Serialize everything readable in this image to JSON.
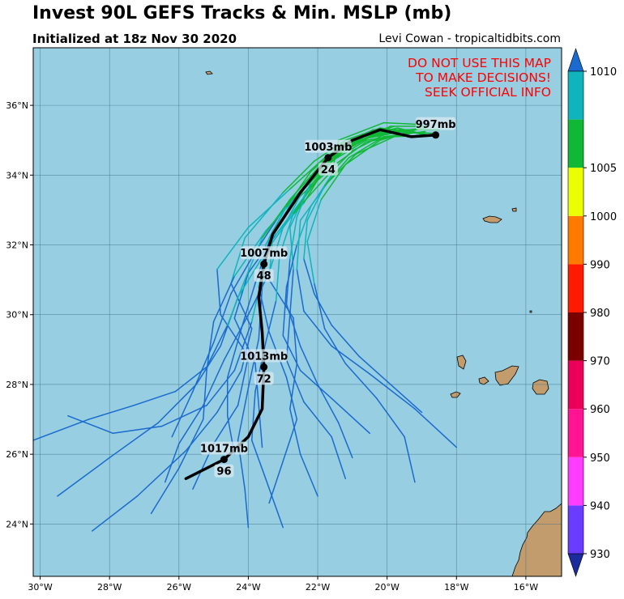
{
  "title": "Invest 90L GEFS Tracks & Min. MSLP (mb)",
  "subtitle": "Initialized at 18z Nov 30 2020",
  "credit": "Levi Cowan - tropicaltidbits.com",
  "warning": {
    "line1": "DO NOT USE THIS MAP",
    "line2": "TO MAKE DECISIONS!",
    "line3": "SEEK OFFICIAL INFO"
  },
  "map": {
    "extent": {
      "lon_min": -30.2,
      "lon_max": -14.97,
      "lat_min": 22.5,
      "lat_max": 37.65
    },
    "ocean_color": "#97cee2",
    "land_color": "#c39c6e",
    "lon_ticks": [
      {
        "value": -30,
        "label": "30°W"
      },
      {
        "value": -28,
        "label": "28°W"
      },
      {
        "value": -26,
        "label": "26°W"
      },
      {
        "value": -24,
        "label": "24°W"
      },
      {
        "value": -22,
        "label": "22°W"
      },
      {
        "value": -20,
        "label": "20°W"
      },
      {
        "value": -18,
        "label": "18°W"
      },
      {
        "value": -16,
        "label": "16°W"
      }
    ],
    "lat_ticks": [
      {
        "value": 24,
        "label": "24°N"
      },
      {
        "value": 26,
        "label": "26°N"
      },
      {
        "value": 28,
        "label": "28°N"
      },
      {
        "value": 30,
        "label": "30°N"
      },
      {
        "value": 32,
        "label": "32°N"
      },
      {
        "value": 34,
        "label": "34°N"
      },
      {
        "value": 36,
        "label": "36°N"
      }
    ]
  },
  "colorbar": {
    "levels": [
      930,
      940,
      950,
      960,
      970,
      980,
      990,
      1000,
      1005,
      1010
    ],
    "colors": [
      "#6a3cff",
      "#ff3cff",
      "#ff1493",
      "#ea0058",
      "#7a0000",
      "#ff1a00",
      "#ff7a00",
      "#ebff00",
      "#10b836",
      "#0fb4bc"
    ],
    "under_color": "#1b2a9c",
    "over_color": "#1a6ad0",
    "labels": [
      "930",
      "940",
      "950",
      "960",
      "970",
      "980",
      "990",
      "1000",
      "1005",
      "1010"
    ]
  },
  "mean_track": {
    "points": [
      {
        "lon": -25.8,
        "lat": 25.3
      },
      {
        "lon": -24.7,
        "lat": 25.85
      },
      {
        "lon": -24.0,
        "lat": 26.5
      },
      {
        "lon": -23.6,
        "lat": 27.3
      },
      {
        "lon": -23.55,
        "lat": 28.5
      },
      {
        "lon": -23.6,
        "lat": 29.5
      },
      {
        "lon": -23.7,
        "lat": 30.5
      },
      {
        "lon": -23.55,
        "lat": 31.45
      },
      {
        "lon": -23.3,
        "lat": 32.3
      },
      {
        "lon": -22.5,
        "lat": 33.5
      },
      {
        "lon": -21.7,
        "lat": 34.5
      },
      {
        "lon": -21.0,
        "lat": 35.0
      },
      {
        "lon": -20.2,
        "lat": 35.3
      },
      {
        "lon": -19.3,
        "lat": 35.1
      },
      {
        "lon": -18.6,
        "lat": 35.15
      }
    ],
    "markers": [
      {
        "lon": -18.6,
        "lat": 35.15,
        "pressure": "997mb",
        "hour": ""
      },
      {
        "lon": -21.7,
        "lat": 34.5,
        "pressure": "1003mb",
        "hour": "24"
      },
      {
        "lon": -23.55,
        "lat": 31.45,
        "pressure": "1007mb",
        "hour": "48"
      },
      {
        "lon": -23.55,
        "lat": 28.5,
        "pressure": "1013mb",
        "hour": "72"
      },
      {
        "lon": -24.7,
        "lat": 25.85,
        "pressure": "1017mb",
        "hour": "96"
      }
    ]
  },
  "members": [
    [
      [
        -23.6,
        26.2
      ],
      [
        -23.7,
        27.4
      ],
      [
        -23.8,
        28.6
      ],
      [
        -24.4,
        29.9
      ],
      [
        -24.0,
        31.2
      ],
      [
        -23.2,
        32.3
      ],
      [
        -22.3,
        33.5
      ],
      [
        -21.5,
        34.5
      ],
      [
        -20.8,
        35.1
      ],
      [
        -19.7,
        35.35
      ],
      [
        -18.6,
        35.1
      ]
    ],
    [
      [
        -25.6,
        25.0
      ],
      [
        -25.0,
        26.3
      ],
      [
        -24.3,
        27.4
      ],
      [
        -24.0,
        28.8
      ],
      [
        -24.8,
        30.0
      ],
      [
        -24.9,
        31.3
      ],
      [
        -24.0,
        32.5
      ],
      [
        -22.8,
        33.6
      ],
      [
        -21.8,
        34.5
      ],
      [
        -20.9,
        35.0
      ],
      [
        -19.6,
        35.3
      ],
      [
        -18.9,
        35.15
      ]
    ],
    [
      [
        -22.0,
        24.8
      ],
      [
        -22.5,
        26.0
      ],
      [
        -22.8,
        27.3
      ],
      [
        -22.6,
        28.6
      ],
      [
        -22.7,
        29.9
      ],
      [
        -23.4,
        31.0
      ],
      [
        -23.3,
        32.2
      ],
      [
        -22.4,
        33.2
      ],
      [
        -21.8,
        34.2
      ],
      [
        -21.0,
        34.9
      ],
      [
        -19.9,
        35.4
      ],
      [
        -18.8,
        35.4
      ]
    ],
    [
      [
        -28.5,
        23.8
      ],
      [
        -27.2,
        24.8
      ],
      [
        -25.8,
        26.1
      ],
      [
        -24.9,
        27.2
      ],
      [
        -24.2,
        28.4
      ],
      [
        -23.9,
        29.6
      ],
      [
        -24.5,
        30.9
      ],
      [
        -24.1,
        32.2
      ],
      [
        -23.0,
        33.5
      ],
      [
        -22.1,
        34.4
      ],
      [
        -21.2,
        35.0
      ],
      [
        -20.2,
        35.35
      ],
      [
        -19.0,
        35.2
      ]
    ],
    [
      [
        -21.2,
        25.3
      ],
      [
        -21.6,
        26.5
      ],
      [
        -22.4,
        27.5
      ],
      [
        -22.9,
        28.7
      ],
      [
        -22.8,
        30.0
      ],
      [
        -22.7,
        31.3
      ],
      [
        -22.8,
        32.5
      ],
      [
        -22.3,
        33.6
      ],
      [
        -21.4,
        34.6
      ],
      [
        -20.3,
        35.2
      ],
      [
        -18.9,
        35.35
      ]
    ],
    [
      [
        -26.2,
        26.5
      ],
      [
        -25.6,
        27.8
      ],
      [
        -25.0,
        29.2
      ],
      [
        -24.5,
        30.6
      ],
      [
        -23.8,
        31.8
      ],
      [
        -23.0,
        33.0
      ],
      [
        -22.0,
        34.1
      ],
      [
        -21.1,
        34.9
      ],
      [
        -19.9,
        35.3
      ],
      [
        -18.5,
        35.3
      ]
    ],
    [
      [
        -20.5,
        26.6
      ],
      [
        -21.6,
        27.6
      ],
      [
        -22.5,
        28.4
      ],
      [
        -23.0,
        29.4
      ],
      [
        -22.9,
        30.8
      ],
      [
        -22.6,
        32.0
      ],
      [
        -22.2,
        33.1
      ],
      [
        -21.6,
        34.0
      ],
      [
        -21.4,
        35.0
      ],
      [
        -20.1,
        35.5
      ],
      [
        -19.0,
        35.45
      ]
    ],
    [
      [
        -29.5,
        24.8
      ],
      [
        -28.0,
        25.9
      ],
      [
        -26.6,
        26.9
      ],
      [
        -25.5,
        28.0
      ],
      [
        -24.8,
        29.1
      ],
      [
        -24.3,
        30.5
      ],
      [
        -23.5,
        31.8
      ],
      [
        -22.7,
        32.9
      ],
      [
        -22.0,
        33.9
      ],
      [
        -21.4,
        34.8
      ],
      [
        -20.4,
        35.3
      ],
      [
        -19.0,
        35.2
      ]
    ],
    [
      [
        -23.0,
        23.9
      ],
      [
        -23.5,
        25.3
      ],
      [
        -23.9,
        26.4
      ],
      [
        -23.8,
        27.8
      ],
      [
        -23.5,
        29.2
      ],
      [
        -23.2,
        30.4
      ],
      [
        -23.1,
        31.7
      ],
      [
        -22.7,
        32.9
      ],
      [
        -21.8,
        33.9
      ],
      [
        -21.0,
        34.7
      ],
      [
        -19.9,
        35.25
      ],
      [
        -18.7,
        35.2
      ]
    ],
    [
      [
        -26.8,
        24.3
      ],
      [
        -26.0,
        25.6
      ],
      [
        -25.3,
        27.0
      ],
      [
        -25.2,
        28.4
      ],
      [
        -25.0,
        29.8
      ],
      [
        -24.4,
        31.1
      ],
      [
        -23.5,
        32.4
      ],
      [
        -22.5,
        33.5
      ],
      [
        -21.6,
        34.5
      ],
      [
        -20.6,
        35.05
      ],
      [
        -19.3,
        35.3
      ]
    ],
    [
      [
        -18.0,
        26.2
      ],
      [
        -19.2,
        27.3
      ],
      [
        -20.5,
        28.3
      ],
      [
        -21.6,
        29.1
      ],
      [
        -22.4,
        30.1
      ],
      [
        -22.6,
        31.3
      ],
      [
        -22.5,
        32.7
      ],
      [
        -21.7,
        33.8
      ],
      [
        -20.9,
        34.6
      ],
      [
        -19.8,
        35.1
      ],
      [
        -18.7,
        35.15
      ]
    ],
    [
      [
        -29.2,
        27.1
      ],
      [
        -27.9,
        26.6
      ],
      [
        -26.5,
        26.8
      ],
      [
        -25.2,
        27.4
      ],
      [
        -24.4,
        28.4
      ],
      [
        -23.9,
        29.8
      ],
      [
        -23.6,
        31.1
      ],
      [
        -23.3,
        32.4
      ],
      [
        -22.5,
        33.4
      ],
      [
        -21.5,
        34.3
      ],
      [
        -20.6,
        34.95
      ],
      [
        -19.4,
        35.2
      ]
    ],
    [
      [
        -19.2,
        25.2
      ],
      [
        -19.5,
        26.5
      ],
      [
        -20.3,
        27.6
      ],
      [
        -21.2,
        28.6
      ],
      [
        -21.8,
        29.6
      ],
      [
        -22.1,
        30.9
      ],
      [
        -22.3,
        32.1
      ],
      [
        -21.9,
        33.3
      ],
      [
        -21.2,
        34.3
      ],
      [
        -20.2,
        35.0
      ],
      [
        -19.0,
        35.35
      ]
    ],
    [
      [
        -24.0,
        23.9
      ],
      [
        -24.1,
        25.0
      ],
      [
        -24.3,
        26.4
      ],
      [
        -24.0,
        27.9
      ],
      [
        -23.7,
        29.3
      ],
      [
        -23.6,
        30.8
      ],
      [
        -23.4,
        32.2
      ],
      [
        -22.8,
        33.3
      ],
      [
        -21.9,
        34.3
      ],
      [
        -21.0,
        35.0
      ],
      [
        -19.8,
        35.4
      ]
    ],
    [
      [
        -30.2,
        26.4
      ],
      [
        -28.6,
        27.0
      ],
      [
        -27.3,
        27.4
      ],
      [
        -26.1,
        27.8
      ],
      [
        -25.2,
        28.5
      ],
      [
        -24.6,
        29.7
      ],
      [
        -24.1,
        31.0
      ],
      [
        -23.6,
        32.2
      ],
      [
        -22.8,
        33.3
      ],
      [
        -22.0,
        34.2
      ],
      [
        -21.0,
        34.9
      ],
      [
        -19.9,
        35.3
      ]
    ],
    [
      [
        -23.4,
        24.6
      ],
      [
        -23.0,
        25.8
      ],
      [
        -22.6,
        27.0
      ],
      [
        -22.9,
        28.2
      ],
      [
        -23.4,
        29.5
      ],
      [
        -23.7,
        30.8
      ],
      [
        -23.5,
        32.0
      ],
      [
        -22.9,
        33.1
      ],
      [
        -22.2,
        34.1
      ],
      [
        -21.3,
        34.9
      ],
      [
        -20.0,
        35.35
      ]
    ],
    [
      [
        -26.4,
        25.2
      ],
      [
        -26.0,
        26.3
      ],
      [
        -25.3,
        27.4
      ],
      [
        -24.7,
        28.7
      ],
      [
        -24.0,
        30.0
      ],
      [
        -23.4,
        31.2
      ],
      [
        -23.0,
        32.5
      ],
      [
        -22.4,
        33.6
      ],
      [
        -21.6,
        34.4
      ],
      [
        -20.6,
        35.0
      ],
      [
        -19.3,
        35.2
      ]
    ],
    [
      [
        -21.0,
        25.9
      ],
      [
        -21.4,
        26.9
      ],
      [
        -22.0,
        28.0
      ],
      [
        -22.5,
        29.1
      ],
      [
        -22.9,
        30.3
      ],
      [
        -22.8,
        31.6
      ],
      [
        -22.6,
        32.8
      ],
      [
        -22.2,
        33.8
      ],
      [
        -21.5,
        34.6
      ],
      [
        -20.6,
        35.2
      ],
      [
        -19.4,
        35.3
      ]
    ],
    [
      [
        -24.4,
        26.0
      ],
      [
        -24.6,
        27.1
      ],
      [
        -24.6,
        28.2
      ],
      [
        -24.2,
        29.6
      ],
      [
        -23.8,
        30.9
      ],
      [
        -23.4,
        32.1
      ],
      [
        -22.7,
        33.3
      ],
      [
        -21.8,
        34.3
      ],
      [
        -20.8,
        35.0
      ],
      [
        -19.6,
        35.3
      ]
    ],
    [
      [
        -19.0,
        27.2
      ],
      [
        -19.9,
        28.0
      ],
      [
        -20.8,
        28.8
      ],
      [
        -21.6,
        29.7
      ],
      [
        -22.1,
        30.6
      ],
      [
        -22.4,
        31.6
      ],
      [
        -22.3,
        32.7
      ],
      [
        -21.8,
        33.7
      ],
      [
        -21.1,
        34.5
      ],
      [
        -20.1,
        35.1
      ],
      [
        -18.9,
        35.25
      ]
    ]
  ]
}
